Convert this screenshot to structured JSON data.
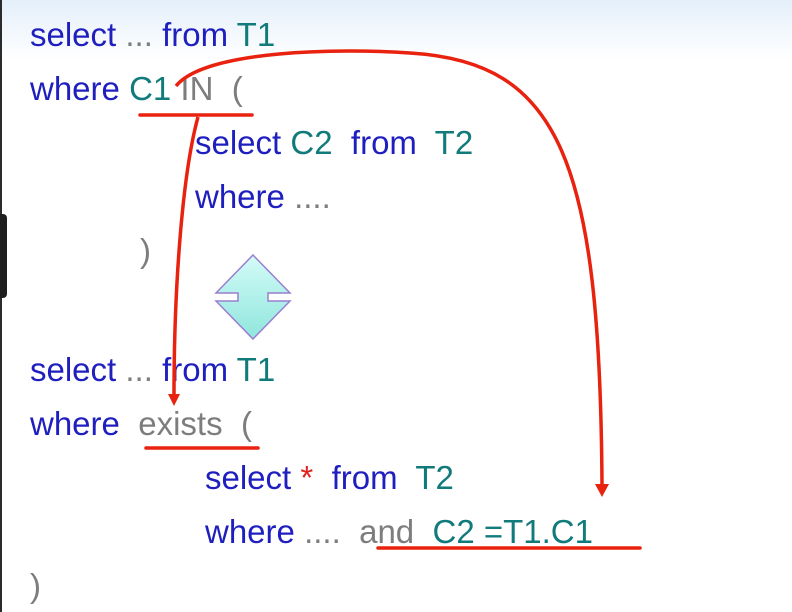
{
  "query_in": {
    "line1": {
      "kw_select": "select",
      "dots": "...",
      "kw_from": "from",
      "table": "T1"
    },
    "line2": {
      "kw_where": "where",
      "column": "C1",
      "op": "IN",
      "paren": "("
    },
    "sub_select": {
      "kw_select": "select",
      "column": "C2",
      "kw_from": "from",
      "table": "T2"
    },
    "sub_where": {
      "kw_where": "where",
      "dots": "...."
    },
    "close": ")"
  },
  "query_exists": {
    "line1": {
      "kw_select": "select",
      "dots": "...",
      "kw_from": "from",
      "table": "T1"
    },
    "line2": {
      "kw_where": "where",
      "op": "exists",
      "paren": "("
    },
    "sub_select": {
      "kw_select": "select",
      "star": "*",
      "kw_from": "from",
      "table": "T2"
    },
    "sub_where": {
      "kw_where": "where",
      "dots": "....",
      "kw_and": "and",
      "condition": "C2 =T1.C1"
    },
    "close": ")"
  },
  "colors": {
    "keyword": "#1f1fbf",
    "identifier": "#117a7a",
    "muted": "#7d7d7d",
    "arrow": "#e8220e",
    "equivalence": "#a8f2ec"
  },
  "icons": [
    "equivalence-double-arrow-icon",
    "in-to-exists-arrow-icon",
    "column-to-condition-arrow-icon"
  ]
}
